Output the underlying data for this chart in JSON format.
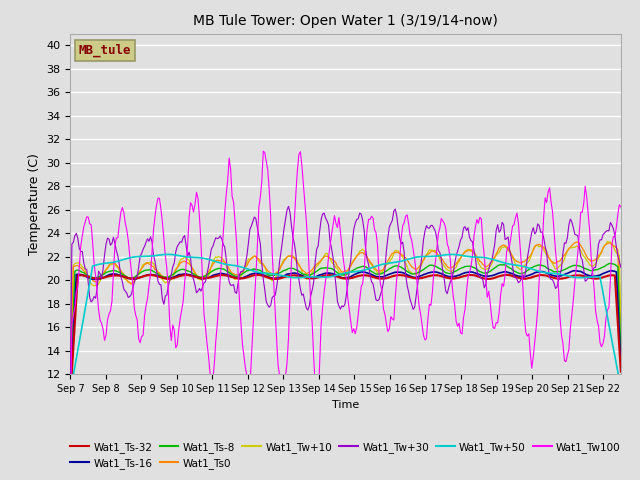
{
  "title": "MB Tule Tower: Open Water 1 (3/19/14-now)",
  "xlabel": "Time",
  "ylabel": "Temperature (C)",
  "ylim": [
    12,
    41
  ],
  "yticks": [
    12,
    14,
    16,
    18,
    20,
    22,
    24,
    26,
    28,
    30,
    32,
    34,
    36,
    38,
    40
  ],
  "x_tick_labels": [
    "Sep 7",
    "Sep 8",
    "Sep 9",
    "Sep 10",
    "Sep 11",
    "Sep 12",
    "Sep 13",
    "Sep 14",
    "Sep 15",
    "Sep 16",
    "Sep 17",
    "Sep 18",
    "Sep 19",
    "Sep 20",
    "Sep 21",
    "Sep 22"
  ],
  "series_colors": {
    "Wat1_Ts-32": "#cc0000",
    "Wat1_Ts-16": "#000099",
    "Wat1_Ts-8": "#00bb00",
    "Wat1_Ts0": "#ff8800",
    "Wat1_Tw+10": "#cccc00",
    "Wat1_Tw+30": "#9900cc",
    "Wat1_Tw+50": "#00cccc",
    "Wat1_Tw100": "#ff00ff"
  },
  "legend_box_color": "#cccc88",
  "legend_box_text": "MB_tule",
  "legend_box_text_color": "#880000",
  "background_color": "#e0e0e0",
  "plot_bg_color": "#e0e0e0"
}
